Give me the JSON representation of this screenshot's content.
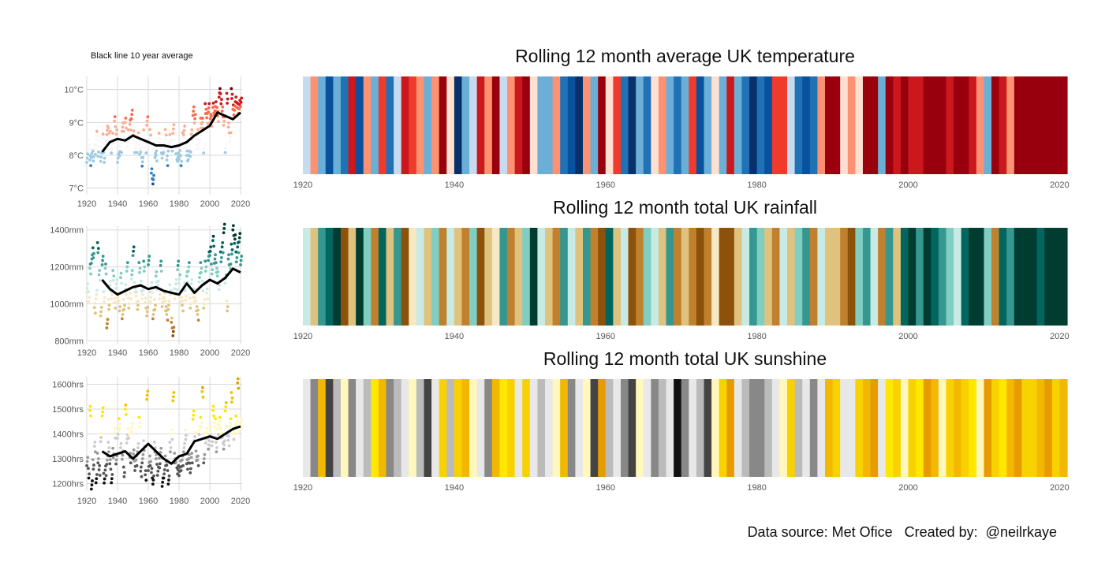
{
  "note": "Black line 10 year average",
  "credit": "Data source: Met Ofice   Created by:  @neilrkaye",
  "chart_data": [
    {
      "id": "temp-scatter",
      "type": "scatter",
      "title": "",
      "x_ticks": [
        "1920",
        "1940",
        "1960",
        "1980",
        "2000",
        "2020"
      ],
      "y_ticks": [
        "7°C",
        "8°C",
        "9°C",
        "10°C"
      ],
      "xlim": [
        1920,
        2021
      ],
      "ylim": [
        6.8,
        10.4
      ],
      "palette": [
        "#08519c",
        "#3182bd",
        "#9ecae1",
        "#f7f7f7",
        "#fcae91",
        "#fb6a4a",
        "#cb181d",
        "#67000d"
      ],
      "avg_line": {
        "x": [
          1930,
          1935,
          1940,
          1945,
          1950,
          1955,
          1960,
          1965,
          1970,
          1975,
          1980,
          1985,
          1990,
          1995,
          2000,
          2005,
          2010,
          2015,
          2020
        ],
        "y": [
          8.1,
          8.4,
          8.5,
          8.45,
          8.6,
          8.5,
          8.4,
          8.3,
          8.3,
          8.25,
          8.3,
          8.4,
          8.6,
          8.75,
          8.9,
          9.3,
          9.2,
          9.1,
          9.3
        ]
      },
      "points": {
        "x": [
          1920,
          1921,
          1922,
          1923,
          1924,
          1925,
          1926,
          1927,
          1928,
          1929,
          1930,
          1931,
          1932,
          1933,
          1934,
          1935,
          1936,
          1937,
          1938,
          1939,
          1940,
          1941,
          1942,
          1943,
          1944,
          1945,
          1946,
          1947,
          1948,
          1949,
          1950,
          1951,
          1952,
          1953,
          1954,
          1955,
          1956,
          1957,
          1958,
          1959,
          1960,
          1961,
          1962,
          1963,
          1964,
          1965,
          1966,
          1967,
          1968,
          1969,
          1970,
          1971,
          1972,
          1973,
          1974,
          1975,
          1976,
          1977,
          1978,
          1979,
          1980,
          1981,
          1982,
          1983,
          1984,
          1985,
          1986,
          1987,
          1988,
          1989,
          1990,
          1991,
          1992,
          1993,
          1994,
          1995,
          1996,
          1997,
          1998,
          1999,
          2000,
          2001,
          2002,
          2003,
          2004,
          2005,
          2006,
          2007,
          2008,
          2009,
          2010,
          2011,
          2012,
          2013,
          2014,
          2015,
          2016,
          2017,
          2018,
          2019,
          2020
        ],
        "y": [
          8.0,
          8.4,
          7.9,
          8.1,
          8.0,
          8.2,
          8.6,
          8.1,
          8.4,
          7.9,
          8.6,
          8.0,
          8.4,
          8.8,
          8.7,
          8.6,
          8.2,
          8.5,
          9.0,
          8.6,
          8.0,
          8.2,
          8.3,
          8.9,
          8.6,
          9.0,
          8.4,
          8.6,
          8.9,
          9.2,
          8.7,
          8.3,
          8.3,
          8.6,
          8.2,
          8.1,
          7.8,
          8.6,
          8.2,
          9.0,
          8.5,
          8.7,
          7.5,
          7.3,
          8.1,
          8.0,
          8.4,
          8.5,
          8.2,
          8.0,
          8.3,
          8.7,
          7.9,
          8.3,
          8.5,
          8.3,
          8.8,
          8.3,
          8.0,
          7.9,
          8.1,
          7.9,
          8.6,
          8.8,
          8.4,
          8.0,
          8.0,
          8.1,
          8.6,
          9.3,
          9.2,
          8.4,
          8.7,
          8.4,
          9.0,
          9.0,
          8.2,
          9.4,
          9.1,
          9.4,
          9.2,
          9.1,
          9.5,
          9.4,
          9.5,
          9.2,
          9.9,
          9.7,
          9.3,
          9.0,
          8.3,
          9.8,
          8.9,
          8.6,
          9.9,
          9.4,
          9.5,
          9.6,
          9.4,
          9.5,
          9.7
        ]
      }
    },
    {
      "id": "rain-scatter",
      "type": "scatter",
      "title": "",
      "x_ticks": [
        "1920",
        "1940",
        "1960",
        "1980",
        "2000",
        "2020"
      ],
      "y_ticks": [
        "800mm",
        "1000mm",
        "1200mm",
        "1400mm"
      ],
      "xlim": [
        1920,
        2021
      ],
      "ylim": [
        780,
        1420
      ],
      "palette": [
        "#8c510a",
        "#bf812d",
        "#dfc27d",
        "#f6e8c3",
        "#c7eae5",
        "#80cdc1",
        "#35978f",
        "#01665e",
        "#003c30"
      ],
      "avg_line": {
        "x": [
          1930,
          1935,
          1940,
          1945,
          1950,
          1955,
          1960,
          1965,
          1970,
          1975,
          1980,
          1985,
          1990,
          1995,
          2000,
          2005,
          2010,
          2015,
          2020
        ],
        "y": [
          1130,
          1080,
          1050,
          1070,
          1090,
          1100,
          1080,
          1090,
          1070,
          1060,
          1050,
          1110,
          1060,
          1100,
          1130,
          1110,
          1140,
          1190,
          1170
        ]
      },
      "points": {
        "x": [
          1920,
          1921,
          1922,
          1923,
          1924,
          1925,
          1926,
          1927,
          1928,
          1929,
          1930,
          1931,
          1932,
          1933,
          1934,
          1935,
          1936,
          1937,
          1938,
          1939,
          1940,
          1941,
          1942,
          1943,
          1944,
          1945,
          1946,
          1947,
          1948,
          1949,
          1950,
          1951,
          1952,
          1953,
          1954,
          1955,
          1956,
          1957,
          1958,
          1959,
          1960,
          1961,
          1962,
          1963,
          1964,
          1965,
          1966,
          1967,
          1968,
          1969,
          1970,
          1971,
          1972,
          1973,
          1974,
          1975,
          1976,
          1977,
          1978,
          1979,
          1980,
          1981,
          1982,
          1983,
          1984,
          1985,
          1986,
          1987,
          1988,
          1989,
          1990,
          1991,
          1992,
          1993,
          1994,
          1995,
          1996,
          1997,
          1998,
          1999,
          2000,
          2001,
          2002,
          2003,
          2004,
          2005,
          2006,
          2007,
          2008,
          2009,
          2010,
          2011,
          2012,
          2013,
          2014,
          2015,
          2016,
          2017,
          2018,
          2019,
          2020
        ],
        "y": [
          1100,
          1050,
          1200,
          1250,
          1280,
          980,
          1050,
          1300,
          1150,
          950,
          1250,
          1050,
          1200,
          900,
          1000,
          1100,
          1050,
          1150,
          1000,
          1100,
          1050,
          1000,
          1150,
          950,
          1000,
          1080,
          1200,
          1000,
          1050,
          1150,
          1300,
          1100,
          1050,
          1000,
          1200,
          1100,
          1050,
          1200,
          1000,
          950,
          1250,
          1050,
          1100,
          950,
          1000,
          1150,
          1100,
          1050,
          1200,
          1000,
          1050,
          1000,
          950,
          1000,
          1080,
          900,
          850,
          1050,
          1100,
          1200,
          1150,
          1050,
          1000,
          1100,
          1050,
          1150,
          1200,
          1000,
          1100,
          1050,
          1050,
          1000,
          950,
          1150,
          1200,
          1100,
          1000,
          1200,
          1050,
          1250,
          1300,
          1200,
          1350,
          1250,
          1200,
          1150,
          1100,
          1250,
          1300,
          1400,
          1150,
          1000,
          1250,
          1200,
          1300,
          1400,
          1350,
          1250,
          1300,
          1350,
          1250
        ]
      }
    },
    {
      "id": "sun-scatter",
      "type": "scatter",
      "title": "",
      "x_ticks": [
        "1920",
        "1940",
        "1960",
        "1980",
        "2000",
        "2020"
      ],
      "y_ticks": [
        "1200hrs",
        "1300hrs",
        "1400hrs",
        "1500hrs",
        "1600hrs"
      ],
      "xlim": [
        1920,
        2021
      ],
      "ylim": [
        1170,
        1630
      ],
      "palette": [
        "#111111",
        "#555555",
        "#999999",
        "#cccccc",
        "#fff7bc",
        "#fee800",
        "#f2c200",
        "#e6a500"
      ],
      "avg_line": {
        "x": [
          1930,
          1935,
          1940,
          1945,
          1950,
          1955,
          1960,
          1965,
          1970,
          1975,
          1980,
          1985,
          1990,
          1995,
          2000,
          2005,
          2010,
          2015,
          2020
        ],
        "y": [
          1330,
          1310,
          1320,
          1330,
          1300,
          1330,
          1360,
          1330,
          1300,
          1280,
          1310,
          1320,
          1370,
          1380,
          1390,
          1380,
          1400,
          1420,
          1430
        ]
      },
      "points": {
        "x": [
          1920,
          1921,
          1922,
          1923,
          1924,
          1925,
          1926,
          1927,
          1928,
          1929,
          1930,
          1931,
          1932,
          1933,
          1934,
          1935,
          1936,
          1937,
          1938,
          1939,
          1940,
          1941,
          1942,
          1943,
          1944,
          1945,
          1946,
          1947,
          1948,
          1949,
          1950,
          1951,
          1952,
          1953,
          1954,
          1955,
          1956,
          1957,
          1958,
          1959,
          1960,
          1961,
          1962,
          1963,
          1964,
          1965,
          1966,
          1967,
          1968,
          1969,
          1970,
          1971,
          1972,
          1973,
          1974,
          1975,
          1976,
          1977,
          1978,
          1979,
          1980,
          1981,
          1982,
          1983,
          1984,
          1985,
          1986,
          1987,
          1988,
          1989,
          1990,
          1991,
          1992,
          1993,
          1994,
          1995,
          1996,
          1997,
          1998,
          1999,
          2000,
          2001,
          2002,
          2003,
          2004,
          2005,
          2006,
          2007,
          2008,
          2009,
          2010,
          2011,
          2012,
          2013,
          2014,
          2015,
          2016,
          2017,
          2018,
          2019,
          2020
        ],
        "y": [
          1300,
          1250,
          1500,
          1200,
          1280,
          1350,
          1220,
          1300,
          1250,
          1380,
          1500,
          1230,
          1260,
          1300,
          1350,
          1280,
          1220,
          1320,
          1400,
          1290,
          1410,
          1450,
          1350,
          1320,
          1250,
          1500,
          1380,
          1400,
          1300,
          1420,
          1330,
          1280,
          1300,
          1350,
          1450,
          1250,
          1300,
          1350,
          1230,
          1550,
          1280,
          1300,
          1250,
          1220,
          1350,
          1300,
          1250,
          1280,
          1320,
          1200,
          1250,
          1300,
          1280,
          1220,
          1350,
          1400,
          1550,
          1300,
          1280,
          1250,
          1260,
          1280,
          1300,
          1350,
          1400,
          1280,
          1300,
          1260,
          1300,
          1470,
          1400,
          1320,
          1300,
          1420,
          1450,
          1570,
          1300,
          1380,
          1400,
          1350,
          1420,
          1380,
          1500,
          1450,
          1350,
          1420,
          1450,
          1400,
          1380,
          1350,
          1520,
          1420,
          1380,
          1450,
          1550,
          1400,
          1420,
          1450,
          1600,
          1420,
          1450
        ]
      }
    },
    {
      "id": "temp-stripes",
      "type": "heatmap",
      "title": "Rolling 12 month average UK temperature",
      "x_ticks": [
        "1920",
        "1940",
        "1960",
        "1980",
        "2000",
        "2020"
      ],
      "xlim": [
        1920,
        2021
      ],
      "palette": [
        "#08306b",
        "#08519c",
        "#2171b5",
        "#6baed6",
        "#c6dbef",
        "#fee0d2",
        "#fc9272",
        "#ef3b2c",
        "#cb181d",
        "#99000d"
      ],
      "values": [
        0.4,
        0.6,
        0.3,
        0.1,
        0.3,
        0.2,
        0.8,
        0.1,
        0.6,
        0.3,
        0.7,
        0.2,
        0.4,
        0.8,
        0.7,
        0.6,
        0.3,
        0.6,
        0.9,
        0.5,
        0.0,
        0.3,
        0.4,
        0.8,
        0.6,
        0.9,
        0.4,
        0.6,
        0.8,
        0.9,
        0.5,
        0.3,
        0.3,
        0.6,
        0.2,
        0.1,
        0.0,
        0.6,
        0.3,
        0.9,
        0.5,
        0.7,
        0.2,
        0.0,
        0.3,
        0.2,
        0.5,
        0.6,
        0.3,
        0.2,
        0.3,
        0.7,
        0.1,
        0.3,
        0.5,
        0.3,
        0.8,
        0.3,
        0.2,
        0.0,
        0.2,
        0.1,
        0.7,
        0.7,
        0.4,
        0.2,
        0.1,
        0.2,
        0.6,
        0.9,
        0.9,
        0.5,
        0.6,
        0.5,
        0.9,
        0.9,
        0.3,
        0.9,
        0.8,
        0.9,
        0.8,
        0.8,
        0.9,
        0.9,
        0.9,
        0.8,
        1.0,
        1.0,
        0.8,
        0.6,
        0.3,
        1.0,
        0.8,
        0.6,
        1.0,
        0.9,
        0.9,
        1.0,
        0.9,
        0.9,
        1.0
      ]
    },
    {
      "id": "rain-stripes",
      "type": "heatmap",
      "title": "Rolling 12 month total UK rainfall",
      "x_ticks": [
        "1920",
        "1940",
        "1960",
        "1980",
        "2000",
        "2020"
      ],
      "xlim": [
        1920,
        2021
      ],
      "palette": [
        "#8c510a",
        "#bf812d",
        "#dfc27d",
        "#f6e8c3",
        "#c7eae5",
        "#80cdc1",
        "#35978f",
        "#01665e",
        "#003c30"
      ],
      "values": [
        0.5,
        0.3,
        0.7,
        0.8,
        0.9,
        0.1,
        0.3,
        0.9,
        0.6,
        0.2,
        0.8,
        0.3,
        0.7,
        0.0,
        0.4,
        0.5,
        0.3,
        0.6,
        0.2,
        0.5,
        0.3,
        0.2,
        0.6,
        0.1,
        0.3,
        0.4,
        0.7,
        0.2,
        0.3,
        0.6,
        0.9,
        0.5,
        0.3,
        0.2,
        0.7,
        0.5,
        0.3,
        0.7,
        0.2,
        0.1,
        0.8,
        0.3,
        0.5,
        0.1,
        0.2,
        0.6,
        0.5,
        0.3,
        0.7,
        0.2,
        0.3,
        0.2,
        0.0,
        0.2,
        0.4,
        0.1,
        0.0,
        0.3,
        0.5,
        0.7,
        0.6,
        0.3,
        0.2,
        0.5,
        0.3,
        0.6,
        0.7,
        0.2,
        0.5,
        0.3,
        0.3,
        0.2,
        0.1,
        0.6,
        0.7,
        0.5,
        0.2,
        0.7,
        0.3,
        0.8,
        0.9,
        0.7,
        1.0,
        0.8,
        0.7,
        0.6,
        0.5,
        0.8,
        0.9,
        1.0,
        0.6,
        0.2,
        0.8,
        0.7,
        0.9,
        1.0,
        0.9,
        0.8,
        0.9,
        1.0,
        0.9
      ]
    },
    {
      "id": "sun-stripes",
      "type": "heatmap",
      "title": "Rolling 12 month total UK sunshine",
      "x_ticks": [
        "1920",
        "1940",
        "1960",
        "1980",
        "2000",
        "2020"
      ],
      "xlim": [
        1920,
        2021
      ],
      "palette": [
        "#111111",
        "#444444",
        "#888888",
        "#bbbbbb",
        "#e8e8e8",
        "#fff7bc",
        "#fee800",
        "#f8d200",
        "#f2b800",
        "#e69c00"
      ],
      "values": [
        0.4,
        0.2,
        0.8,
        0.1,
        0.3,
        0.5,
        0.2,
        0.4,
        0.3,
        0.6,
        0.8,
        0.2,
        0.3,
        0.4,
        0.5,
        0.3,
        0.1,
        0.4,
        0.7,
        0.3,
        0.7,
        0.8,
        0.5,
        0.4,
        0.2,
        0.8,
        0.6,
        0.7,
        0.4,
        0.7,
        0.4,
        0.3,
        0.4,
        0.5,
        0.8,
        0.2,
        0.4,
        0.5,
        0.1,
        0.9,
        0.3,
        0.4,
        0.2,
        0.1,
        0.5,
        0.4,
        0.2,
        0.3,
        0.4,
        0.0,
        0.2,
        0.4,
        0.3,
        0.1,
        0.5,
        0.7,
        0.9,
        0.4,
        0.3,
        0.2,
        0.2,
        0.3,
        0.4,
        0.5,
        0.7,
        0.3,
        0.4,
        0.2,
        0.4,
        0.8,
        0.7,
        0.4,
        0.4,
        0.7,
        0.8,
        1.0,
        0.4,
        0.6,
        0.7,
        0.5,
        0.7,
        0.6,
        0.9,
        0.8,
        0.5,
        0.7,
        0.8,
        0.7,
        0.6,
        0.5,
        0.9,
        0.7,
        0.6,
        0.8,
        0.9,
        0.7,
        0.7,
        0.8,
        1.0,
        0.7,
        0.8
      ]
    }
  ]
}
